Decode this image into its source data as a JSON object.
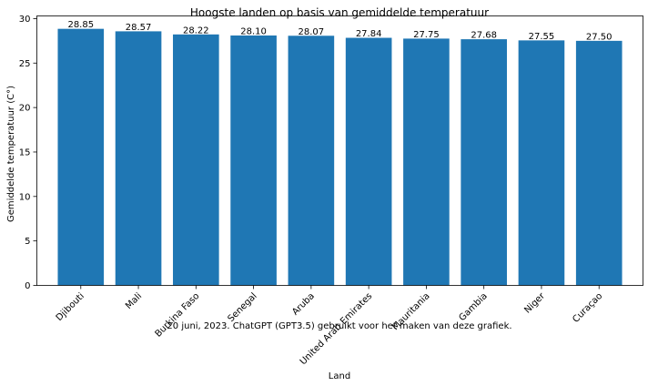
{
  "chart_data": {
    "type": "bar",
    "title": "Hoogste landen op basis van gemiddelde temperatuur",
    "xlabel": "Land",
    "ylabel": "Gemiddelde temperatuur (C°)",
    "categories": [
      "Djibouti",
      "Mali",
      "Burkina Faso",
      "Senegal",
      "Aruba",
      "United Arab Emirates",
      "Mauritania",
      "Gambia",
      "Niger",
      "Curaçao"
    ],
    "values": [
      28.85,
      28.57,
      28.22,
      28.1,
      28.07,
      27.84,
      27.75,
      27.68,
      27.55,
      27.5
    ],
    "value_labels": [
      "28.85",
      "28.57",
      "28.22",
      "28.10",
      "28.07",
      "27.84",
      "27.75",
      "27.68",
      "27.55",
      "27.50"
    ],
    "yticks": [
      0,
      5,
      10,
      15,
      20,
      25,
      30
    ],
    "ylim": [
      0,
      30.3
    ],
    "grid": false,
    "bar_color": "#1f77b4",
    "annotation": "20 juni, 2023. ChatGPT (GPT3.5) gebruikt voor het maken van deze grafiek."
  }
}
